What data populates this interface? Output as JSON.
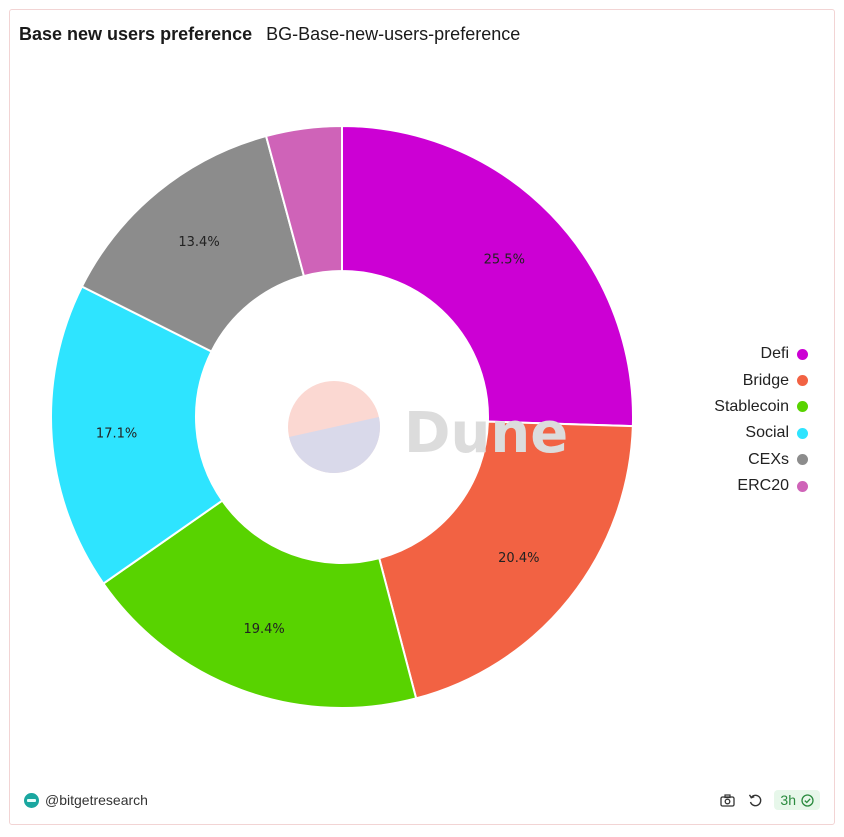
{
  "header": {
    "title": "Base new users preference",
    "subtitle": "BG-Base-new-users-preference"
  },
  "watermark": {
    "text": "Dune"
  },
  "chart_data": {
    "type": "pie",
    "donut": true,
    "categories": [
      "Defi",
      "Bridge",
      "Stablecoin",
      "Social",
      "CEXs",
      "ERC20"
    ],
    "values": [
      25.5,
      20.4,
      19.4,
      17.1,
      13.4,
      4.2
    ],
    "labels": [
      "25.5%",
      "20.4%",
      "19.4%",
      "17.1%",
      "13.4%",
      ""
    ],
    "colors": [
      "#cc00d4",
      "#f26243",
      "#58d300",
      "#2ee4ff",
      "#8c8c8c",
      "#cf63b8"
    ],
    "legend_position": "right"
  },
  "footer": {
    "author": "@bitgetresearch",
    "camera_icon": "camera-icon",
    "refresh_icon": "refresh-icon",
    "freshness": "3h",
    "check_icon": "check-circle-icon"
  }
}
